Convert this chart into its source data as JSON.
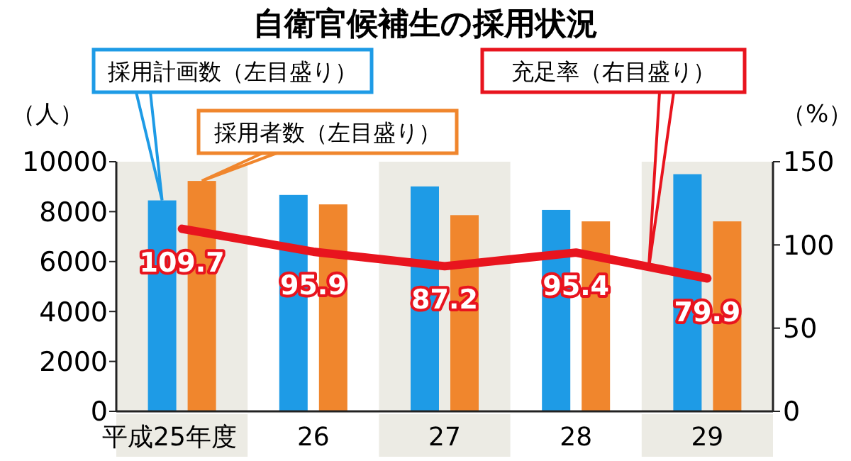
{
  "chart_data": {
    "type": "bar",
    "title": "自衛官候補生の採用状況",
    "ylabel": "（人）",
    "y2label": "（%）",
    "categories": [
      "平成25年度",
      "26",
      "27",
      "28",
      "29"
    ],
    "series": [
      {
        "name": "採用計画数（左目盛り）",
        "color": "#1e9be6",
        "values": [
          8450,
          8670,
          9010,
          8070,
          9500
        ]
      },
      {
        "name": "採用者数（左目盛り）",
        "color": "#f0862d",
        "values": [
          9230,
          8290,
          7860,
          7610,
          7610
        ]
      },
      {
        "name": "充足率（右目盛り）",
        "type": "line",
        "axis": "y2",
        "color": "#e8141e",
        "values": [
          109.7,
          95.9,
          87.2,
          95.4,
          79.9
        ],
        "data_labels": true
      }
    ],
    "ylim": [
      0,
      10000
    ],
    "yticks": [
      0,
      2000,
      4000,
      6000,
      8000,
      10000
    ],
    "y2lim": [
      0,
      150
    ],
    "y2ticks": [
      0,
      50,
      100,
      150
    ],
    "bands": [
      {
        "axis": "x",
        "from": "平成25年度",
        "to": "平成25年度",
        "color": "#ecebe4"
      },
      {
        "axis": "x",
        "from": "27",
        "to": "27",
        "color": "#ecebe4"
      },
      {
        "axis": "x",
        "from": "29",
        "to": "29",
        "color": "#ecebe4"
      }
    ],
    "legend": "top",
    "grid": false
  }
}
